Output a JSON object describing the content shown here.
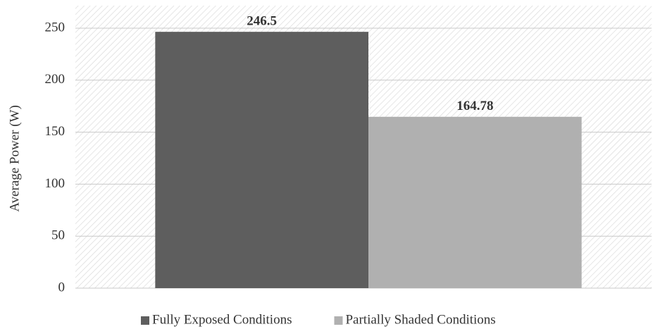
{
  "chart_data": {
    "type": "bar",
    "y_label": "Average Power (W)",
    "categories": [
      null
    ],
    "series": [
      {
        "name": "Fully Exposed Conditions",
        "color": "#5e5e5e",
        "values": [
          246.5
        ]
      },
      {
        "name": "Partially Shaded Conditions",
        "color": "#b0b0b0",
        "values": [
          164.78
        ]
      }
    ],
    "ylim": [
      0,
      250
    ],
    "yticks": [
      0,
      50,
      100,
      150,
      200,
      250
    ],
    "grid": true,
    "legend": "bottom"
  }
}
